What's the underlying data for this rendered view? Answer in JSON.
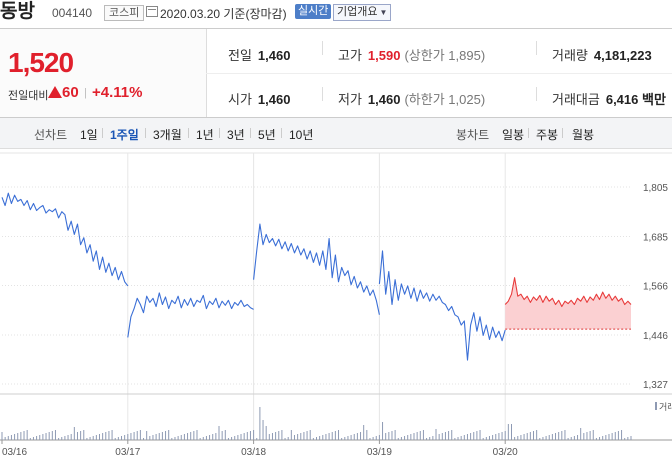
{
  "header": {
    "stock_name": "동방",
    "stock_code": "004140",
    "market": "코스피",
    "date_text": "2020.03.20 기준(장마감)",
    "realtime_label": "실시간",
    "overview_label": "기업개요"
  },
  "summary": {
    "price": "1,520",
    "change_label": "전일대비",
    "change": "60",
    "change_pct": "+4.11%",
    "prev_label": "전일",
    "prev": "1,460",
    "open_label": "시가",
    "open": "1,460",
    "high_label": "고가",
    "high": "1,590",
    "upper_limit": "(상한가 1,895)",
    "low_label": "저가",
    "low": "1,460",
    "lower_limit": "(하한가 1,025)",
    "volume_label": "거래량",
    "volume": "4,181,223",
    "amount_label": "거래대금",
    "amount": "6,416 백만"
  },
  "period_bar": {
    "line_label": "선차트",
    "line_options": [
      "1일",
      "1주일",
      "3개월",
      "1년",
      "3년",
      "5년",
      "10년"
    ],
    "selected": "1주일",
    "candle_label": "봉차트",
    "candle_options": [
      "일봉",
      "주봉",
      "월봉"
    ]
  },
  "chart_data": {
    "type": "line",
    "title": "",
    "x_tick_labels": [
      "03/16",
      "03/17",
      "03/18",
      "03/19",
      "03/20"
    ],
    "y_tick_labels": [
      "1,805",
      "1,685",
      "1,566",
      "1,446",
      "1,327"
    ],
    "ylim": [
      1327,
      1805
    ],
    "reference_price": 1460,
    "volume_legend": "거래",
    "colors": {
      "line": "#3b6fd6",
      "up_line": "#e83b3b",
      "up_fill": "#fbd0d2",
      "ref_line": "#d33"
    },
    "sessions": [
      {
        "day": "03/16",
        "x": [
          0,
          1,
          2,
          3,
          4,
          5,
          6,
          7,
          8,
          9,
          10,
          11,
          12,
          13,
          14,
          15,
          16,
          17,
          18,
          19,
          20,
          21,
          22,
          23,
          24,
          25,
          26,
          27,
          28,
          29,
          30,
          31,
          32,
          33,
          34,
          35,
          36,
          37,
          38,
          39,
          40
        ],
        "y": [
          1780,
          1760,
          1790,
          1765,
          1785,
          1770,
          1775,
          1760,
          1772,
          1750,
          1765,
          1748,
          1755,
          1760,
          1742,
          1750,
          1745,
          1752,
          1730,
          1745,
          1738,
          1700,
          1722,
          1690,
          1715,
          1665,
          1682,
          1645,
          1665,
          1625,
          1650,
          1605,
          1635,
          1598,
          1620,
          1590,
          1610,
          1580,
          1600,
          1575,
          1565
        ]
      },
      {
        "day": "03/17",
        "x": [
          40,
          41,
          42,
          43,
          44,
          45,
          46,
          47,
          48,
          49,
          50,
          51,
          52,
          53,
          54,
          55,
          56,
          57,
          58,
          59,
          60,
          61,
          62,
          63,
          64,
          65,
          66,
          67,
          68,
          69,
          70,
          71,
          72,
          73,
          74,
          75,
          76,
          77,
          78,
          79,
          80
        ],
        "y": [
          1440,
          1490,
          1510,
          1535,
          1520,
          1500,
          1540,
          1525,
          1535,
          1515,
          1548,
          1520,
          1538,
          1510,
          1530,
          1522,
          1540,
          1512,
          1532,
          1518,
          1535,
          1515,
          1530,
          1525,
          1542,
          1510,
          1528,
          1520,
          1535,
          1512,
          1528,
          1518,
          1530,
          1510,
          1525,
          1518,
          1530,
          1515,
          1520,
          1512,
          1508
        ]
      },
      {
        "day": "03/18",
        "x": [
          80,
          81,
          82,
          83,
          84,
          85,
          86,
          87,
          88,
          89,
          90,
          91,
          92,
          93,
          94,
          95,
          96,
          97,
          98,
          99,
          100,
          101,
          102,
          103,
          104,
          105,
          106,
          107,
          108,
          109,
          110,
          111,
          112,
          113,
          114,
          115,
          116,
          117,
          118,
          119,
          120
        ],
        "y": [
          1580,
          1650,
          1715,
          1665,
          1690,
          1670,
          1680,
          1662,
          1678,
          1655,
          1672,
          1650,
          1668,
          1645,
          1662,
          1640,
          1655,
          1630,
          1650,
          1622,
          1645,
          1615,
          1650,
          1605,
          1680,
          1585,
          1640,
          1575,
          1610,
          1590,
          1602,
          1568,
          1588,
          1560,
          1575,
          1550,
          1565,
          1542,
          1555,
          1530,
          1495
        ]
      },
      {
        "day": "03/19",
        "x": [
          120,
          121,
          122,
          123,
          124,
          125,
          126,
          127,
          128,
          129,
          130,
          131,
          132,
          133,
          134,
          135,
          136,
          137,
          138,
          139,
          140,
          141,
          142,
          143,
          144,
          145,
          146,
          147,
          148,
          149,
          150,
          151,
          152,
          153,
          154,
          155,
          156,
          157,
          158,
          159,
          160
        ],
        "y": [
          1570,
          1650,
          1545,
          1600,
          1520,
          1580,
          1530,
          1570,
          1545,
          1565,
          1535,
          1560,
          1528,
          1555,
          1535,
          1548,
          1528,
          1545,
          1530,
          1540,
          1525,
          1520,
          1505,
          1515,
          1495,
          1490,
          1470,
          1480,
          1385,
          1470,
          1500,
          1455,
          1490,
          1445,
          1470,
          1435,
          1465,
          1440,
          1455,
          1432,
          1458
        ]
      },
      {
        "day": "03/20",
        "x": [
          160,
          161,
          162,
          163,
          164,
          165,
          166,
          167,
          168,
          169,
          170,
          171,
          172,
          173,
          174,
          175,
          176,
          177,
          178,
          179,
          180,
          181,
          182,
          183,
          184,
          185,
          186,
          187,
          188,
          189,
          190,
          191,
          192,
          193,
          194,
          195,
          196,
          197,
          198,
          199,
          200
        ],
        "y": [
          1520,
          1528,
          1545,
          1585,
          1540,
          1545,
          1532,
          1540,
          1525,
          1538,
          1530,
          1542,
          1525,
          1540,
          1528,
          1535,
          1520,
          1530,
          1515,
          1528,
          1522,
          1530,
          1520,
          1535,
          1528,
          1540,
          1525,
          1538,
          1530,
          1545,
          1532,
          1550,
          1535,
          1545,
          1530,
          1540,
          1528,
          1535,
          1520,
          1528,
          1520
        ]
      }
    ]
  }
}
